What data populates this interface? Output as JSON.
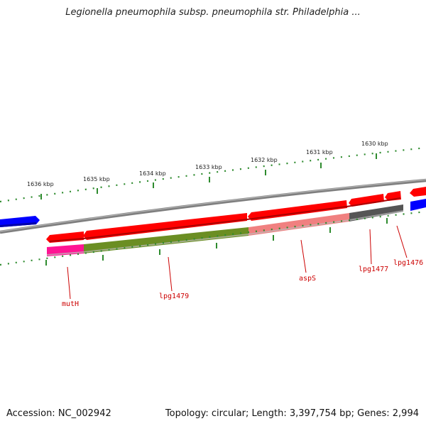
{
  "title": "Legionella pneumophila subsp. pneumophila str. Philadelphia ...",
  "footer": {
    "accession": "Accession: NC_002942",
    "topology": "Topology: circular; Length: 3,397,754 bp; Genes: 2,994"
  },
  "kbp_labels": [
    "1636 kbp",
    "1635 kbp",
    "1634 kbp",
    "1633 kbp",
    "1632 kbp",
    "1631 kbp",
    "1630 kbp"
  ],
  "gene_labels": [
    "mutH",
    "lpg1479",
    "aspS",
    "lpg1477",
    "lpg1476"
  ],
  "colors": {
    "backbone": "#808080",
    "forward_gene": "#ff0000",
    "blue_gene": "#0000ff",
    "olive_gene": "#6b8e23",
    "pink_gene": "#ff1493",
    "light_red_gene": "#f08080",
    "gray_gene": "#555555",
    "tick": "#2e8b2e",
    "label": "#cc0000"
  }
}
